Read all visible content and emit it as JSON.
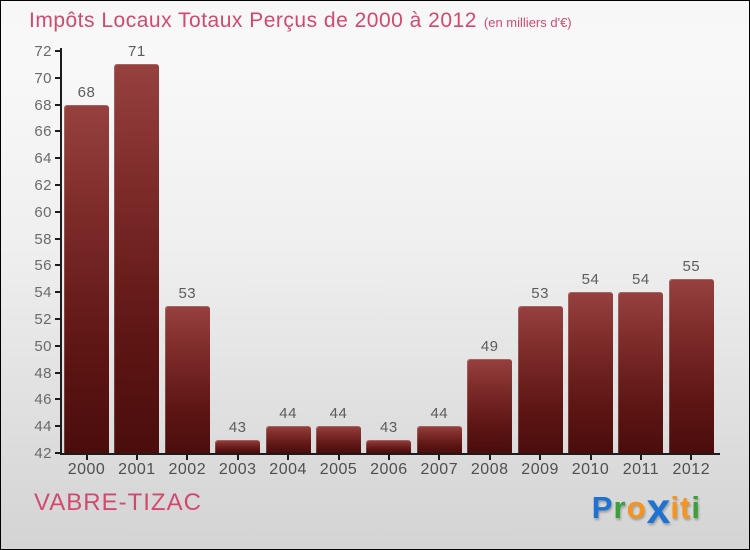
{
  "header": {
    "title": "Impôts Locaux Totaux Perçus de 2000 à 2012",
    "subtitle": "(en milliers d'€)"
  },
  "footer": {
    "commune": "VABRE-TIZAC",
    "logo": {
      "name": "Proxiti",
      "letters": [
        {
          "ch": "P",
          "color": "#1e73d2",
          "big": false
        },
        {
          "ch": "r",
          "color": "#3ba03a",
          "big": false
        },
        {
          "ch": "o",
          "color": "#f7941e",
          "big": false
        },
        {
          "ch": "x",
          "color": "#1e73d2",
          "big": true
        },
        {
          "ch": "i",
          "color": "#f7941e",
          "big": false
        },
        {
          "ch": "t",
          "color": "#f7941e",
          "big": false
        },
        {
          "ch": "i",
          "color": "#3ba03a",
          "big": false
        }
      ]
    }
  },
  "colors": {
    "title_pink": "#d14a6e",
    "bar_top": "#96413f",
    "bar_bottom": "#4a0d0c",
    "axis": "#1c1c1c",
    "label_gray": "#5d5d5d"
  },
  "chart_data": {
    "type": "bar",
    "title": "Impôts Locaux Totaux Perçus de 2000 à 2012",
    "subtitle": "(en milliers d'€)",
    "categories": [
      "2000",
      "2001",
      "2002",
      "2003",
      "2004",
      "2005",
      "2006",
      "2007",
      "2008",
      "2009",
      "2010",
      "2011",
      "2012"
    ],
    "values": [
      68,
      71,
      53,
      43,
      44,
      44,
      43,
      44,
      49,
      53,
      54,
      54,
      55
    ],
    "xlabel": "",
    "ylabel": "",
    "ylim": [
      42,
      72
    ],
    "ytick_step": 2,
    "grid": false,
    "legend": false,
    "bar_labels_shown": true
  }
}
